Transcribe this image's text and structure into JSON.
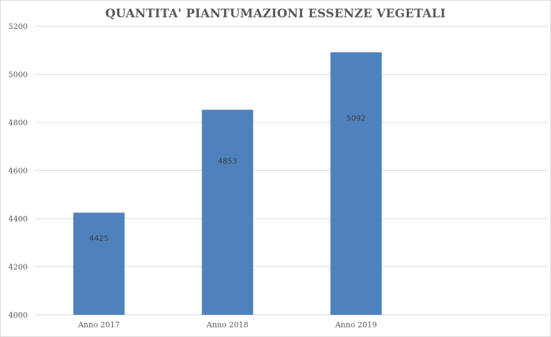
{
  "chart_data": {
    "type": "bar",
    "title": "QUANTITA' PIANTUMAZIONI ESSENZE VEGETALI",
    "xlabel": "",
    "ylabel": "",
    "categories": [
      "Anno 2017",
      "Anno 2018",
      "Anno 2019"
    ],
    "values": [
      4425,
      4853,
      5092
    ],
    "ylim": [
      4000,
      5200
    ],
    "yticks": [
      4000,
      4200,
      4400,
      4600,
      4800,
      5000,
      5200
    ],
    "grid": true,
    "legend": "none",
    "bar_color": "#4f81bd",
    "grid_color": "#d9d9d9"
  }
}
